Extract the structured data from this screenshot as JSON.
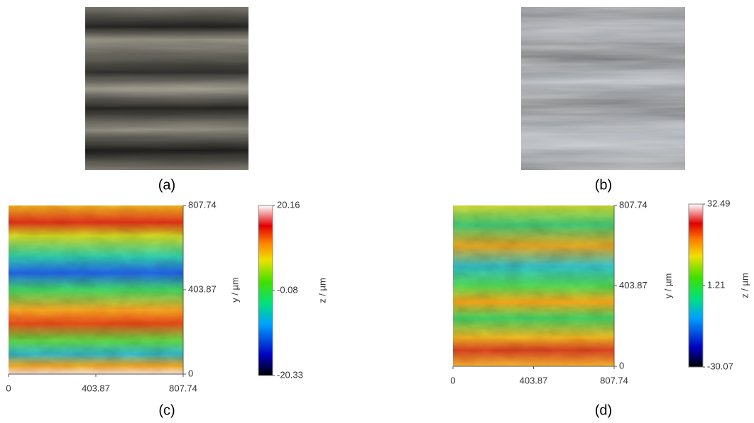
{
  "panels": [
    {
      "label": "(a)"
    },
    {
      "label": "(b)"
    },
    {
      "label": "(c)",
      "xticks": [
        0,
        403.87,
        807.74
      ],
      "yticks": [
        0,
        403.87,
        807.74
      ],
      "ylabel": "y / µm",
      "colorbar": {
        "ticks": [
          -20.33,
          -0.08,
          20.16
        ],
        "label": "z / µm"
      }
    },
    {
      "label": "(d)",
      "xticks": [
        0,
        403.87,
        807.74
      ],
      "yticks": [
        0,
        403.87,
        807.74
      ],
      "ylabel": "y / µm",
      "colorbar": {
        "ticks": [
          -30.07,
          1.21,
          32.49
        ],
        "label": "z / µm"
      }
    }
  ]
}
